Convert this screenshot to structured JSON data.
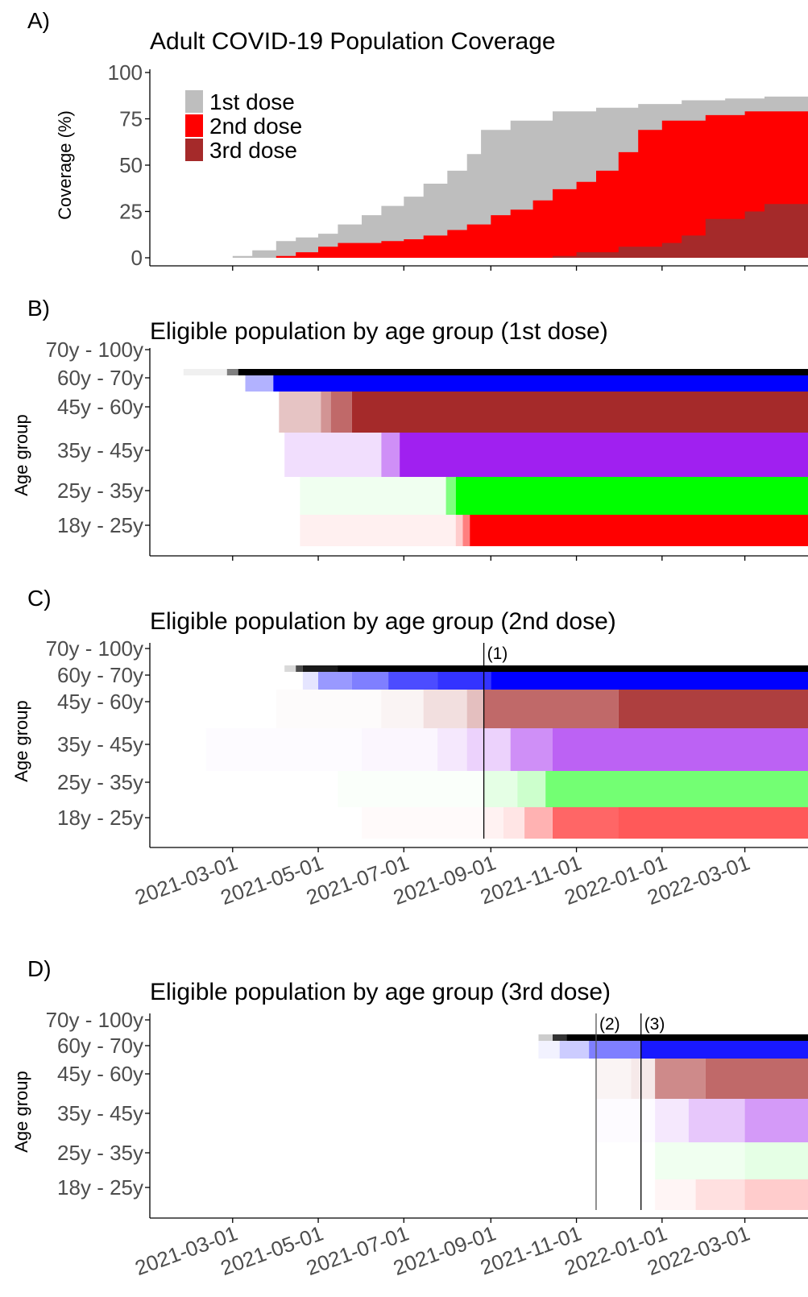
{
  "colors": {
    "dose1": "#bebebe",
    "dose2": "#ff0000",
    "dose3": "#a52a2a",
    "age_70_100": "#000000",
    "age_60_70": "#0000ff",
    "age_45_60": "#a52a2a",
    "age_35_45": "#a020f0",
    "age_25_35": "#00ff00",
    "age_18_25": "#ff0000"
  },
  "x_axis": {
    "start": "2021-01-01",
    "end": "2022-04-15",
    "ticks": [
      "2021-03-01",
      "2021-05-01",
      "2021-07-01",
      "2021-09-01",
      "2021-11-01",
      "2022-01-01",
      "2022-03-01"
    ]
  },
  "panels": {
    "a": {
      "letter": "A)",
      "title": "Adult COVID-19 Population Coverage",
      "ylabel": "Coverage (%)"
    },
    "b": {
      "letter": "B)",
      "title": "Eligible population by age group (1st dose)",
      "ylabel": "Age group"
    },
    "c": {
      "letter": "C)",
      "title": "Eligible population by age group (2nd dose)",
      "ylabel": "Age group"
    },
    "d": {
      "letter": "D)",
      "title": "Eligible population by age group (3rd dose)",
      "ylabel": "Age group"
    }
  },
  "age_groups": [
    "70y - 100y",
    "60y - 70y",
    "45y - 60y",
    "35y - 45y",
    "25y - 35y",
    "18y - 25y"
  ],
  "annotations": {
    "c": [
      {
        "label": "(1)",
        "date": "2021-08-27"
      }
    ],
    "d": [
      {
        "label": "(2)",
        "date": "2021-11-15"
      },
      {
        "label": "(3)",
        "date": "2021-12-17"
      }
    ]
  },
  "chart_data": [
    {
      "type": "area",
      "title": "Adult COVID-19 Population Coverage",
      "ylabel": "Coverage (%)",
      "ylim": [
        0,
        100
      ],
      "yticks": [
        0,
        25,
        50,
        75,
        100
      ],
      "legend": "top-left",
      "series": [
        {
          "name": "1st dose",
          "x": [
            "2021-01-01",
            "2021-02-15",
            "2021-03-01",
            "2021-03-15",
            "2021-04-01",
            "2021-04-15",
            "2021-05-01",
            "2021-05-15",
            "2021-06-01",
            "2021-06-15",
            "2021-07-01",
            "2021-07-15",
            "2021-08-01",
            "2021-08-15",
            "2021-08-25",
            "2021-09-15",
            "2021-10-15",
            "2021-11-15",
            "2021-12-15",
            "2022-01-15",
            "2022-02-15",
            "2022-03-15",
            "2022-04-15"
          ],
          "values": [
            0,
            0,
            1,
            4,
            9,
            11,
            13,
            18,
            23,
            28,
            33,
            40,
            47,
            56,
            69,
            74,
            79,
            81,
            83,
            85,
            86,
            87,
            87
          ]
        },
        {
          "name": "2nd dose",
          "x": [
            "2021-01-01",
            "2021-03-01",
            "2021-04-01",
            "2021-04-15",
            "2021-05-01",
            "2021-05-15",
            "2021-06-15",
            "2021-07-01",
            "2021-07-15",
            "2021-08-01",
            "2021-08-15",
            "2021-09-01",
            "2021-09-15",
            "2021-10-01",
            "2021-10-15",
            "2021-11-01",
            "2021-11-15",
            "2021-12-01",
            "2021-12-15",
            "2022-01-01",
            "2022-02-01",
            "2022-03-01",
            "2022-04-15"
          ],
          "values": [
            0,
            0,
            1,
            3,
            6,
            8,
            9,
            10,
            12,
            15,
            18,
            23,
            26,
            31,
            37,
            41,
            47,
            57,
            69,
            74,
            77,
            79,
            81
          ]
        },
        {
          "name": "3rd dose",
          "x": [
            "2021-01-01",
            "2021-10-01",
            "2021-10-15",
            "2021-11-01",
            "2021-12-01",
            "2022-01-01",
            "2022-01-15",
            "2022-02-01",
            "2022-03-01",
            "2022-03-15",
            "2022-04-15"
          ],
          "values": [
            0,
            0,
            1,
            3,
            6,
            8,
            12,
            21,
            25,
            29,
            38
          ]
        }
      ]
    },
    {
      "type": "heatmap",
      "title": "Eligible population by age group (1st dose)",
      "ylabel": "Age group",
      "rows": [
        {
          "group": "70y - 100y",
          "color": "#000000",
          "steps": [
            [
              "2021-01-25",
              0.06
            ],
            [
              "2021-02-25",
              0.5
            ],
            [
              "2021-03-05",
              1.0
            ]
          ]
        },
        {
          "group": "60y - 70y",
          "color": "#0000ff",
          "steps": [
            [
              "2021-03-10",
              0.3
            ],
            [
              "2021-03-30",
              1.0
            ]
          ]
        },
        {
          "group": "45y - 60y",
          "color": "#a52a2a",
          "steps": [
            [
              "2021-04-03",
              0.28
            ],
            [
              "2021-05-03",
              0.5
            ],
            [
              "2021-05-10",
              0.7
            ],
            [
              "2021-05-25",
              1.0
            ]
          ]
        },
        {
          "group": "35y - 45y",
          "color": "#a020f0",
          "steps": [
            [
              "2021-04-07",
              0.15
            ],
            [
              "2021-06-15",
              0.5
            ],
            [
              "2021-06-28",
              1.0
            ]
          ]
        },
        {
          "group": "25y - 35y",
          "color": "#00ff00",
          "steps": [
            [
              "2021-04-18",
              0.06
            ],
            [
              "2021-07-31",
              0.5
            ],
            [
              "2021-08-07",
              1.0
            ]
          ]
        },
        {
          "group": "18y - 25y",
          "color": "#ff0000",
          "steps": [
            [
              "2021-04-18",
              0.06
            ],
            [
              "2021-08-07",
              0.2
            ],
            [
              "2021-08-12",
              0.5
            ],
            [
              "2021-08-17",
              1.0
            ]
          ]
        }
      ]
    },
    {
      "type": "heatmap",
      "title": "Eligible population by age group (2nd dose)",
      "ylabel": "Age group",
      "rows": [
        {
          "group": "70y - 100y",
          "color": "#000000",
          "steps": [
            [
              "2021-04-07",
              0.15
            ],
            [
              "2021-04-15",
              0.7
            ],
            [
              "2021-04-20",
              0.9
            ],
            [
              "2021-05-15",
              1.0
            ]
          ]
        },
        {
          "group": "60y - 70y",
          "color": "#0000ff",
          "steps": [
            [
              "2021-04-20",
              0.1
            ],
            [
              "2021-05-01",
              0.4
            ],
            [
              "2021-05-25",
              0.5
            ],
            [
              "2021-06-20",
              0.7
            ],
            [
              "2021-07-25",
              0.8
            ],
            [
              "2021-09-01",
              1.0
            ]
          ]
        },
        {
          "group": "45y - 60y",
          "color": "#a52a2a",
          "steps": [
            [
              "2021-04-01",
              0.02
            ],
            [
              "2021-06-15",
              0.05
            ],
            [
              "2021-07-15",
              0.15
            ],
            [
              "2021-08-15",
              0.3
            ],
            [
              "2021-08-27",
              0.7
            ],
            [
              "2021-12-01",
              0.9
            ]
          ]
        },
        {
          "group": "35y - 45y",
          "color": "#a020f0",
          "steps": [
            [
              "2021-02-10",
              0.02
            ],
            [
              "2021-06-01",
              0.04
            ],
            [
              "2021-07-25",
              0.1
            ],
            [
              "2021-08-15",
              0.2
            ],
            [
              "2021-09-15",
              0.5
            ],
            [
              "2021-10-15",
              0.7
            ]
          ]
        },
        {
          "group": "25y - 35y",
          "color": "#00ff00",
          "steps": [
            [
              "2021-05-15",
              0.02
            ],
            [
              "2021-08-27",
              0.1
            ],
            [
              "2021-09-20",
              0.2
            ],
            [
              "2021-10-10",
              0.55
            ]
          ]
        },
        {
          "group": "18y - 25y",
          "color": "#ff0000",
          "steps": [
            [
              "2021-06-01",
              0.02
            ],
            [
              "2021-08-27",
              0.05
            ],
            [
              "2021-09-10",
              0.1
            ],
            [
              "2021-09-25",
              0.3
            ],
            [
              "2021-10-15",
              0.6
            ],
            [
              "2021-12-01",
              0.65
            ]
          ]
        }
      ]
    },
    {
      "type": "heatmap",
      "title": "Eligible population by age group (3rd dose)",
      "ylabel": "Age group",
      "rows": [
        {
          "group": "70y - 100y",
          "color": "#000000",
          "steps": [
            [
              "2021-10-05",
              0.2
            ],
            [
              "2021-10-15",
              0.8
            ],
            [
              "2021-10-25",
              1.0
            ]
          ]
        },
        {
          "group": "60y - 70y",
          "color": "#0000ff",
          "steps": [
            [
              "2021-10-05",
              0.05
            ],
            [
              "2021-10-20",
              0.2
            ],
            [
              "2021-11-10",
              0.5
            ],
            [
              "2021-12-17",
              0.9
            ]
          ]
        },
        {
          "group": "45y - 60y",
          "color": "#a52a2a",
          "steps": [
            [
              "2021-11-15",
              0.05
            ],
            [
              "2021-12-10",
              0.1
            ],
            [
              "2021-12-27",
              0.55
            ],
            [
              "2022-02-01",
              0.7
            ]
          ]
        },
        {
          "group": "35y - 45y",
          "color": "#a020f0",
          "steps": [
            [
              "2021-11-15",
              0.02
            ],
            [
              "2021-12-27",
              0.1
            ],
            [
              "2022-01-20",
              0.25
            ],
            [
              "2022-03-01",
              0.45
            ]
          ]
        },
        {
          "group": "25y - 35y",
          "color": "#00ff00",
          "steps": [
            [
              "2021-12-27",
              0.06
            ],
            [
              "2022-03-01",
              0.1
            ]
          ]
        },
        {
          "group": "18y - 25y",
          "color": "#ff0000",
          "steps": [
            [
              "2021-12-27",
              0.04
            ],
            [
              "2022-01-25",
              0.12
            ],
            [
              "2022-03-01",
              0.2
            ]
          ]
        }
      ]
    }
  ]
}
